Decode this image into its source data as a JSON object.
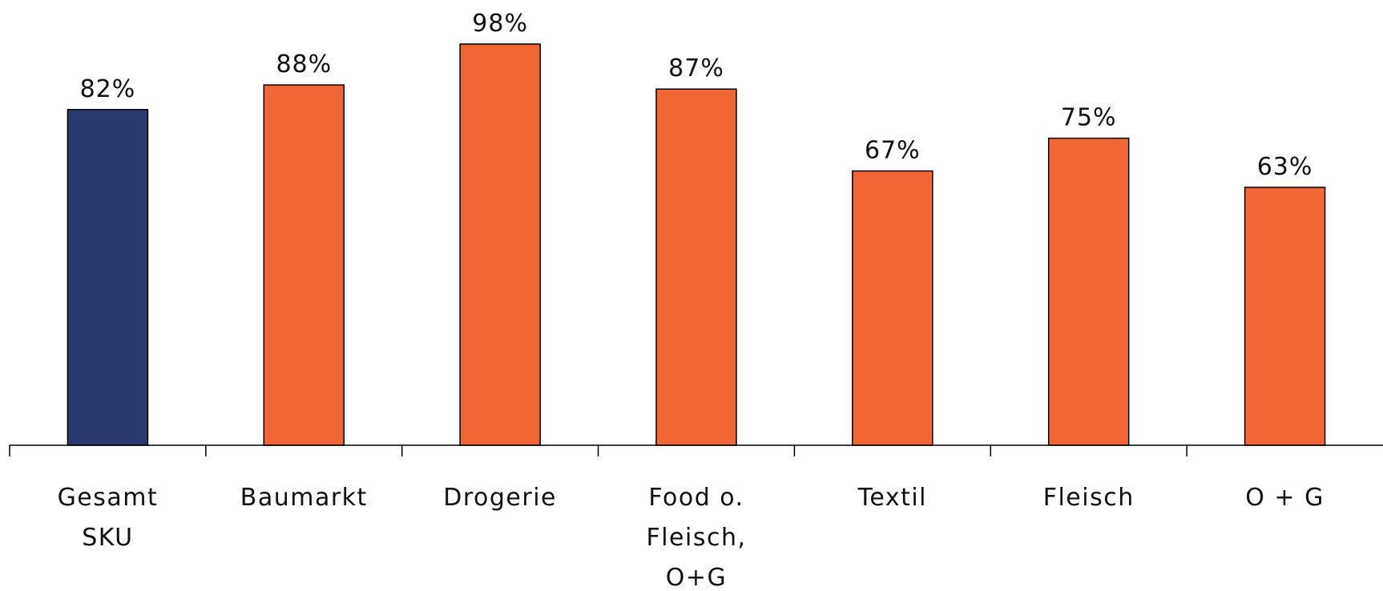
{
  "chart_data": {
    "type": "bar",
    "categories": [
      [
        "Gesamt",
        "SKU"
      ],
      [
        "Baumarkt"
      ],
      [
        "Drogerie"
      ],
      [
        "Food o.",
        "Fleisch,",
        "O+G"
      ],
      [
        "Textil"
      ],
      [
        "Fleisch"
      ],
      [
        "O + G"
      ]
    ],
    "values": [
      82,
      88,
      98,
      87,
      67,
      75,
      63
    ],
    "value_labels": [
      "82%",
      "88%",
      "98%",
      "87%",
      "67%",
      "75%",
      "63%"
    ],
    "bar_colors": [
      "#2b3a6e",
      "#f26535",
      "#f26535",
      "#f26535",
      "#f26535",
      "#f26535",
      "#f26535"
    ],
    "title": "",
    "xlabel": "",
    "ylabel": "",
    "ylim": [
      0,
      100
    ],
    "grid": false,
    "legend": "none"
  }
}
